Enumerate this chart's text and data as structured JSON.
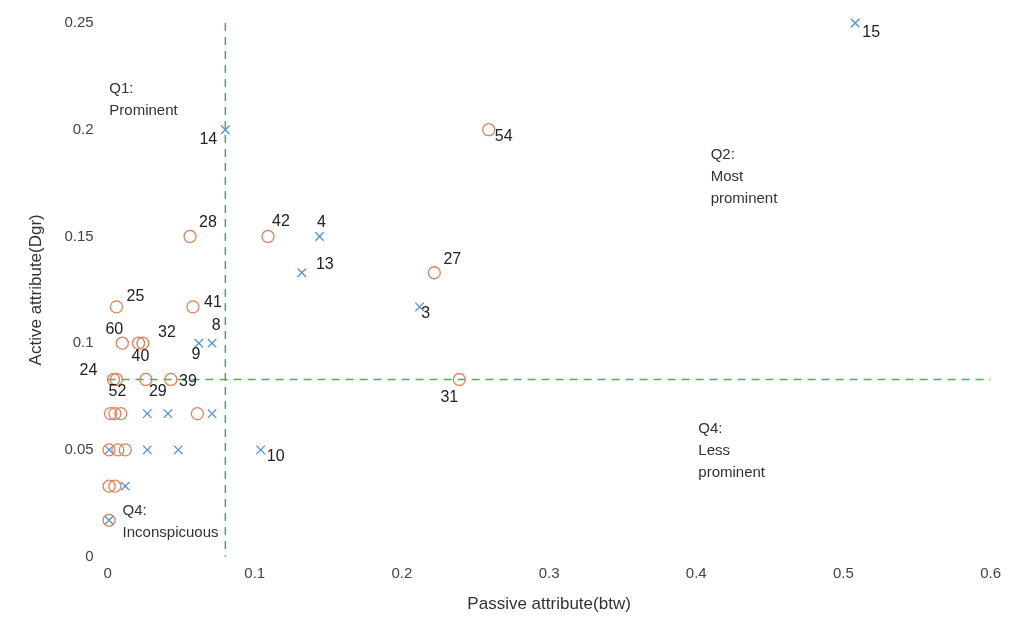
{
  "chart_data": {
    "type": "scatter",
    "xlabel": "Passive attribute(btw)",
    "ylabel": "Active attribute(Dgr)",
    "xlim": [
      0,
      0.6
    ],
    "xticks": [
      0,
      0.1,
      0.2,
      0.3,
      0.4,
      0.5,
      0.6
    ],
    "ylim": [
      0,
      0.25
    ],
    "yticks": [
      0,
      0.05,
      0.1,
      0.15,
      0.2,
      0.25
    ],
    "grid": false,
    "legend": false,
    "series": [
      {
        "color": "#e0805a",
        "marker": "circle",
        "x": [
          0.259,
          0.056,
          0.109,
          0.222,
          0.006,
          0.058,
          0.01,
          0.021,
          0.024,
          0.004,
          0.006,
          0.026,
          0.043,
          0.239,
          0.002,
          0.005,
          0.009,
          0.061,
          0.001,
          0.007,
          0.012,
          0.001,
          0.005,
          0.001
        ],
        "values": [
          0.2,
          0.15,
          0.15,
          0.133,
          0.117,
          0.117,
          0.1,
          0.1,
          0.1,
          0.083,
          0.083,
          0.083,
          0.083,
          0.083,
          0.067,
          0.067,
          0.067,
          0.067,
          0.05,
          0.05,
          0.05,
          0.033,
          0.033,
          0.017
        ]
      },
      {
        "color": "#4a94d0",
        "marker": "cross",
        "x": [
          0.508,
          0.08,
          0.144,
          0.132,
          0.212,
          0.062,
          0.071,
          0.027,
          0.041,
          0.071,
          0.027,
          0.048,
          0.104,
          0.001,
          0.012,
          0.001
        ],
        "values": [
          0.25,
          0.2,
          0.15,
          0.133,
          0.117,
          0.1,
          0.1,
          0.067,
          0.067,
          0.067,
          0.05,
          0.05,
          0.05,
          0.05,
          0.033,
          0.017
        ]
      }
    ],
    "ref_lines": [
      {
        "axis": "x",
        "value": 0.08,
        "color": "#4caf50",
        "line_style": "dashed"
      },
      {
        "axis": "y",
        "value": 0.083,
        "color": "#4caf50",
        "line_style": "dashed"
      }
    ],
    "annotations": [
      {
        "text": "15",
        "x": 0.508,
        "y": 0.25
      },
      {
        "text": "54",
        "x": 0.259,
        "y": 0.2
      },
      {
        "text": "14",
        "x": 0.08,
        "y": 0.2
      },
      {
        "text": "28",
        "x": 0.056,
        "y": 0.15
      },
      {
        "text": "42",
        "x": 0.109,
        "y": 0.15
      },
      {
        "text": "4",
        "x": 0.144,
        "y": 0.15
      },
      {
        "text": "13",
        "x": 0.132,
        "y": 0.133
      },
      {
        "text": "27",
        "x": 0.222,
        "y": 0.133
      },
      {
        "text": "3",
        "x": 0.212,
        "y": 0.117
      },
      {
        "text": "25",
        "x": 0.006,
        "y": 0.117
      },
      {
        "text": "41",
        "x": 0.058,
        "y": 0.117
      },
      {
        "text": "8",
        "x": 0.071,
        "y": 0.1
      },
      {
        "text": "60",
        "x": 0.01,
        "y": 0.1
      },
      {
        "text": "32",
        "x": 0.024,
        "y": 0.1
      },
      {
        "text": "40",
        "x": 0.021,
        "y": 0.1
      },
      {
        "text": "9",
        "x": 0.062,
        "y": 0.1
      },
      {
        "text": "24",
        "x": 0.004,
        "y": 0.083
      },
      {
        "text": "52",
        "x": 0.006,
        "y": 0.083
      },
      {
        "text": "29",
        "x": 0.026,
        "y": 0.083
      },
      {
        "text": "39",
        "x": 0.043,
        "y": 0.083
      },
      {
        "text": "31",
        "x": 0.239,
        "y": 0.083
      },
      {
        "text": "10",
        "x": 0.104,
        "y": 0.05
      },
      "Q1:\nProminent",
      "Q2:\nMost\nprominent",
      "Q4:\nLess\nprominent",
      "Q4:\nInconspicuous"
    ]
  }
}
